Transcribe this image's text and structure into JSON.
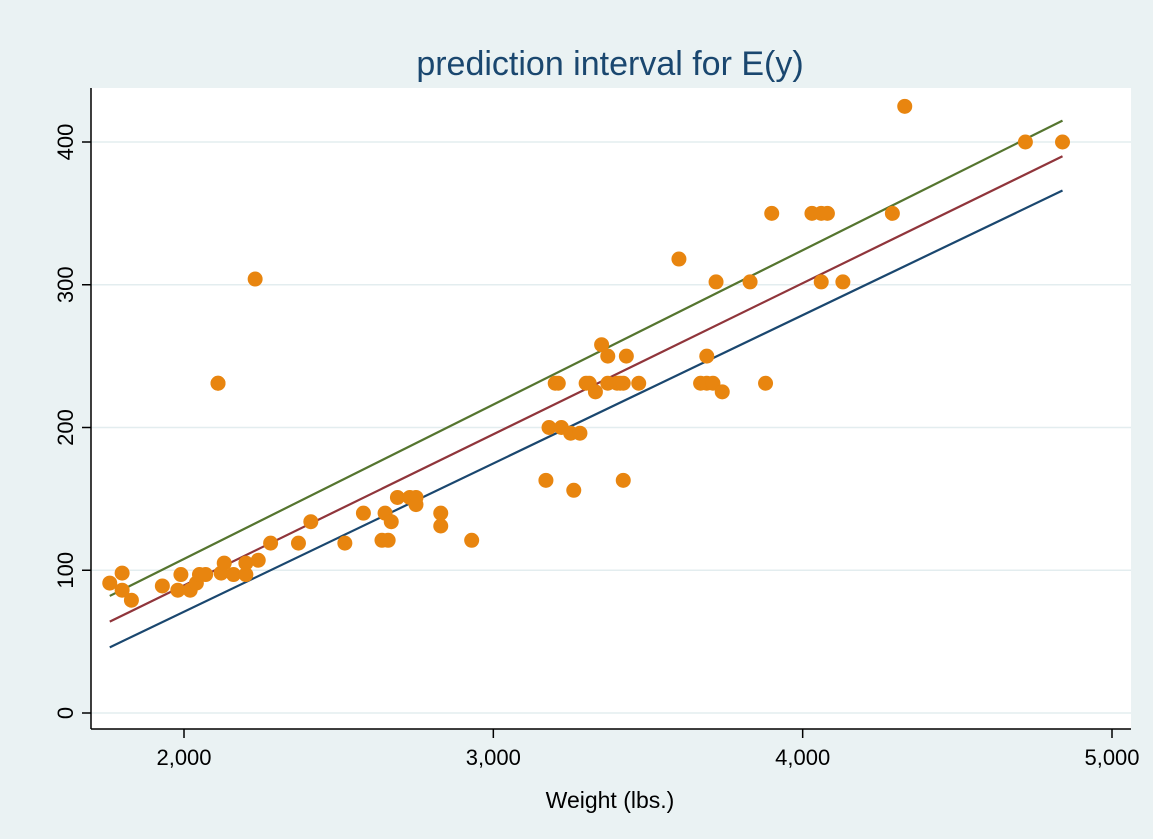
{
  "chart_data": {
    "type": "scatter",
    "title": "prediction interval for E(y)",
    "xlabel": "Weight (lbs.)",
    "ylabel": "",
    "xlim": [
      1700,
      5000
    ],
    "ylim": [
      0,
      440
    ],
    "x_ticks": [
      2000,
      3000,
      4000,
      5000
    ],
    "x_tick_labels": [
      "2,000",
      "3,000",
      "4,000",
      "5,000"
    ],
    "y_ticks": [
      0,
      100,
      200,
      300,
      400
    ],
    "y_tick_labels": [
      "0",
      "100",
      "200",
      "300",
      "400"
    ],
    "grid": "horizontal",
    "legend": "none",
    "colors": {
      "background": "#eaf2f3",
      "plot_background": "#ffffff",
      "grid": "#e3edef",
      "points": "#e8850f",
      "title": "#1a476f",
      "upper": "#55752f",
      "fit": "#90353b",
      "lower": "#1a476f"
    },
    "series": [
      {
        "kind": "points",
        "x": [
          1760,
          1800,
          1800,
          1830,
          1930,
          1980,
          1990,
          2020,
          2040,
          2050,
          2070,
          2110,
          2120,
          2130,
          2160,
          2200,
          2200,
          2240,
          2110,
          2230,
          2280,
          2370,
          2410,
          2520,
          2580,
          2640,
          2650,
          2660,
          2670,
          2690,
          2730,
          2750,
          2750,
          2830,
          2830,
          2930,
          3170,
          3180,
          3200,
          3210,
          3220,
          3250,
          3260,
          3280,
          3300,
          3310,
          3330,
          3350,
          3370,
          3370,
          3400,
          3410,
          3420,
          3420,
          3430,
          3470,
          3600,
          3670,
          3690,
          3690,
          3710,
          3720,
          3740,
          3830,
          3880,
          3900,
          4030,
          4060,
          4060,
          4080,
          4130,
          4290,
          4330,
          4720,
          4840
        ],
        "y": [
          91,
          98,
          86,
          79,
          89,
          86,
          97,
          86,
          91,
          97,
          97,
          231,
          98,
          105,
          97,
          97,
          105,
          107,
          231,
          304,
          119,
          119,
          134,
          119,
          140,
          121,
          140,
          121,
          134,
          151,
          151,
          151,
          146,
          140,
          131,
          121,
          163,
          200,
          231,
          231,
          200,
          196,
          156,
          196,
          231,
          231,
          225,
          258,
          231,
          250,
          231,
          231,
          163,
          231,
          250,
          231,
          318,
          231,
          231,
          250,
          231,
          302,
          225,
          302,
          231,
          350,
          350,
          350,
          302,
          350,
          302,
          350,
          425,
          400,
          400
        ]
      },
      {
        "kind": "line",
        "x": [
          1760,
          4840
        ],
        "y": [
          82,
          415
        ]
      },
      {
        "kind": "line",
        "x": [
          1760,
          4840
        ],
        "y": [
          64,
          390
        ]
      },
      {
        "kind": "line",
        "x": [
          1760,
          4840
        ],
        "y": [
          46,
          366
        ]
      }
    ]
  }
}
